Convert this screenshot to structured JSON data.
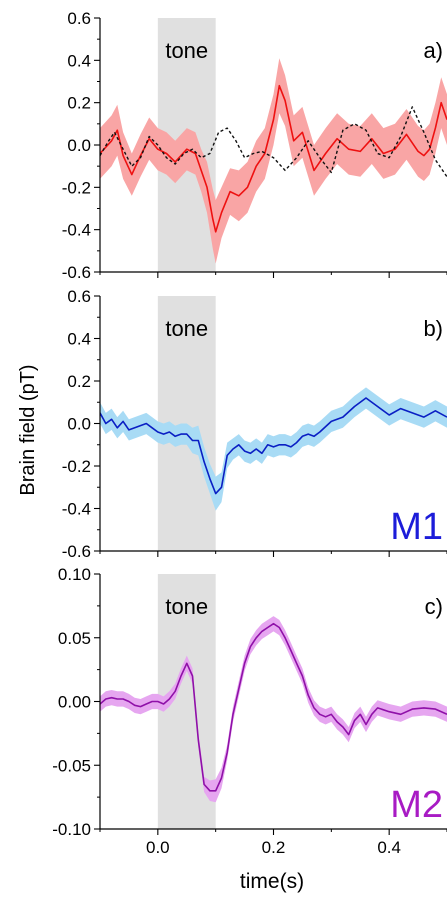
{
  "figure": {
    "ylabel": "Brain field (pT)",
    "xlabel": "time(s)",
    "xlim": [
      -0.1,
      0.5
    ],
    "x_ticks": [
      0.0,
      0.2,
      0.4
    ],
    "x_tick_labels": [
      "0.0",
      "0.2",
      "0.4"
    ]
  },
  "chart_data": [
    {
      "type": "line",
      "panel_label": "a)",
      "shade_label": "tone",
      "shade_range": [
        0.0,
        0.1
      ],
      "shade_color": "#e0e0e0",
      "ylim": [
        -0.6,
        0.6
      ],
      "y_ticks": [
        -0.6,
        -0.4,
        -0.2,
        0.0,
        0.2,
        0.4,
        0.6
      ],
      "y_tick_labels": [
        "-0.6",
        "-0.4",
        "-0.2",
        "0.0",
        "0.2",
        "0.4",
        "0.6"
      ],
      "series": [
        {
          "style": "solid",
          "color": "#ee1111",
          "band_color": "#f9a5a5",
          "x": [
            -0.1,
            -0.08,
            -0.07,
            -0.06,
            -0.045,
            -0.03,
            -0.015,
            0.0,
            0.015,
            0.03,
            0.05,
            0.065,
            0.075,
            0.085,
            0.095,
            0.1,
            0.11,
            0.125,
            0.14,
            0.155,
            0.17,
            0.185,
            0.2,
            0.21,
            0.22,
            0.235,
            0.25,
            0.27,
            0.29,
            0.31,
            0.33,
            0.35,
            0.37,
            0.39,
            0.41,
            0.43,
            0.45,
            0.46,
            0.47,
            0.48,
            0.49,
            0.5
          ],
          "y": [
            -0.04,
            0.02,
            0.07,
            -0.05,
            -0.14,
            -0.05,
            0.03,
            -0.02,
            -0.04,
            -0.08,
            -0.02,
            -0.04,
            -0.12,
            -0.2,
            -0.35,
            -0.41,
            -0.32,
            -0.22,
            -0.24,
            -0.2,
            -0.1,
            -0.04,
            0.12,
            0.28,
            0.21,
            0.02,
            0.06,
            -0.12,
            -0.04,
            0.03,
            -0.02,
            -0.03,
            0.03,
            -0.04,
            -0.02,
            0.05,
            -0.03,
            -0.05,
            -0.02,
            0.08,
            0.2,
            0.12
          ],
          "band_halfwidth": [
            0.12,
            0.12,
            0.12,
            0.11,
            0.1,
            0.1,
            0.1,
            0.1,
            0.1,
            0.1,
            0.1,
            0.1,
            0.1,
            0.12,
            0.14,
            0.15,
            0.12,
            0.11,
            0.12,
            0.12,
            0.12,
            0.12,
            0.12,
            0.13,
            0.12,
            0.12,
            0.12,
            0.12,
            0.12,
            0.12,
            0.12,
            0.12,
            0.12,
            0.12,
            0.12,
            0.12,
            0.12,
            0.12,
            0.12,
            0.12,
            0.12,
            0.12
          ]
        },
        {
          "style": "dashed",
          "color": "#111111",
          "x": [
            -0.1,
            -0.085,
            -0.075,
            -0.06,
            -0.045,
            -0.03,
            -0.015,
            0.0,
            0.015,
            0.03,
            0.045,
            0.06,
            0.075,
            0.09,
            0.105,
            0.12,
            0.135,
            0.15,
            0.165,
            0.18,
            0.2,
            0.22,
            0.24,
            0.26,
            0.28,
            0.3,
            0.32,
            0.34,
            0.36,
            0.38,
            0.4,
            0.42,
            0.44,
            0.46,
            0.48,
            0.5
          ],
          "y": [
            -0.05,
            0.02,
            0.06,
            -0.02,
            -0.1,
            -0.06,
            0.04,
            0.0,
            -0.06,
            -0.09,
            -0.04,
            -0.02,
            -0.06,
            -0.04,
            0.06,
            0.08,
            0.02,
            -0.06,
            -0.04,
            -0.03,
            -0.06,
            -0.12,
            -0.06,
            0.02,
            -0.06,
            -0.13,
            0.07,
            0.1,
            0.07,
            -0.04,
            -0.06,
            0.04,
            0.18,
            0.06,
            -0.07,
            -0.15
          ]
        }
      ]
    },
    {
      "type": "line",
      "panel_label": "b)",
      "shade_label": "tone",
      "shade_range": [
        0.0,
        0.1
      ],
      "shade_color": "#e0e0e0",
      "corner_label": "M1",
      "corner_label_color": "#1c1cd9",
      "ylim": [
        -0.6,
        0.6
      ],
      "y_ticks": [
        -0.6,
        -0.4,
        -0.2,
        0.0,
        0.2,
        0.4,
        0.6
      ],
      "y_tick_labels": [
        "-0.6",
        "-0.4",
        "-0.2",
        "0.0",
        "0.2",
        "0.4",
        "0.6"
      ],
      "series": [
        {
          "style": "solid",
          "color": "#0a1fc4",
          "band_color": "#a8dbf5",
          "x": [
            -0.1,
            -0.09,
            -0.08,
            -0.07,
            -0.06,
            -0.05,
            -0.04,
            -0.03,
            -0.02,
            -0.01,
            0.0,
            0.01,
            0.02,
            0.03,
            0.04,
            0.05,
            0.06,
            0.07,
            0.08,
            0.09,
            0.1,
            0.11,
            0.12,
            0.13,
            0.14,
            0.15,
            0.16,
            0.17,
            0.18,
            0.19,
            0.2,
            0.21,
            0.22,
            0.23,
            0.24,
            0.25,
            0.26,
            0.27,
            0.28,
            0.3,
            0.32,
            0.34,
            0.36,
            0.38,
            0.4,
            0.42,
            0.44,
            0.46,
            0.48,
            0.5
          ],
          "y": [
            0.05,
            0.0,
            0.02,
            -0.02,
            0.01,
            -0.03,
            -0.02,
            -0.01,
            0.0,
            -0.02,
            -0.04,
            -0.05,
            -0.04,
            -0.06,
            -0.05,
            -0.05,
            -0.08,
            -0.08,
            -0.18,
            -0.26,
            -0.33,
            -0.3,
            -0.15,
            -0.12,
            -0.1,
            -0.13,
            -0.14,
            -0.12,
            -0.14,
            -0.1,
            -0.11,
            -0.1,
            -0.1,
            -0.11,
            -0.09,
            -0.06,
            -0.05,
            -0.06,
            -0.04,
            0.01,
            0.03,
            0.08,
            0.12,
            0.08,
            0.04,
            0.07,
            0.05,
            0.03,
            0.06,
            0.03
          ],
          "band_halfwidth": [
            0.05,
            0.05,
            0.05,
            0.05,
            0.05,
            0.05,
            0.05,
            0.05,
            0.05,
            0.05,
            0.05,
            0.05,
            0.05,
            0.05,
            0.05,
            0.05,
            0.06,
            0.07,
            0.07,
            0.07,
            0.08,
            0.07,
            0.06,
            0.05,
            0.05,
            0.05,
            0.05,
            0.05,
            0.05,
            0.05,
            0.05,
            0.05,
            0.05,
            0.05,
            0.05,
            0.05,
            0.05,
            0.05,
            0.05,
            0.05,
            0.05,
            0.05,
            0.05,
            0.05,
            0.05,
            0.05,
            0.05,
            0.05,
            0.05,
            0.05
          ]
        }
      ]
    },
    {
      "type": "line",
      "panel_label": "c)",
      "shade_label": "tone",
      "shade_range": [
        0.0,
        0.1
      ],
      "shade_color": "#e0e0e0",
      "corner_label": "M2",
      "corner_label_color": "#a81bc4",
      "ylim": [
        -0.1,
        0.1
      ],
      "y_ticks": [
        -0.1,
        -0.05,
        0.0,
        0.05,
        0.1
      ],
      "y_tick_labels": [
        "-0.10",
        "-0.05",
        "0.00",
        "0.05",
        "0.10"
      ],
      "series": [
        {
          "style": "solid",
          "color": "#8f10a8",
          "band_color": "#e6a6f0",
          "x": [
            -0.1,
            -0.09,
            -0.08,
            -0.07,
            -0.06,
            -0.05,
            -0.04,
            -0.03,
            -0.02,
            -0.01,
            0.0,
            0.01,
            0.02,
            0.03,
            0.04,
            0.05,
            0.06,
            0.07,
            0.08,
            0.09,
            0.1,
            0.11,
            0.12,
            0.13,
            0.14,
            0.15,
            0.16,
            0.17,
            0.18,
            0.19,
            0.2,
            0.21,
            0.22,
            0.23,
            0.24,
            0.25,
            0.26,
            0.27,
            0.28,
            0.29,
            0.3,
            0.31,
            0.32,
            0.33,
            0.34,
            0.35,
            0.36,
            0.37,
            0.38,
            0.4,
            0.42,
            0.44,
            0.46,
            0.48,
            0.5
          ],
          "y": [
            -0.002,
            0.002,
            0.003,
            0.002,
            0.002,
            0.0,
            -0.003,
            -0.004,
            -0.002,
            0.0,
            0.0,
            -0.002,
            0.002,
            0.008,
            0.02,
            0.03,
            0.02,
            -0.03,
            -0.065,
            -0.07,
            -0.07,
            -0.06,
            -0.04,
            -0.01,
            0.01,
            0.03,
            0.043,
            0.05,
            0.055,
            0.058,
            0.061,
            0.058,
            0.05,
            0.04,
            0.03,
            0.02,
            0.005,
            -0.005,
            -0.01,
            -0.012,
            -0.01,
            -0.016,
            -0.02,
            -0.026,
            -0.015,
            -0.01,
            -0.018,
            -0.01,
            -0.005,
            -0.008,
            -0.01,
            -0.006,
            -0.005,
            -0.006,
            -0.01
          ],
          "band_halfwidth": [
            0.006,
            0.006,
            0.006,
            0.006,
            0.006,
            0.006,
            0.006,
            0.006,
            0.006,
            0.006,
            0.006,
            0.006,
            0.006,
            0.006,
            0.006,
            0.006,
            0.006,
            0.006,
            0.006,
            0.008,
            0.009,
            0.008,
            0.006,
            0.006,
            0.006,
            0.006,
            0.006,
            0.006,
            0.006,
            0.006,
            0.006,
            0.006,
            0.006,
            0.006,
            0.006,
            0.006,
            0.006,
            0.006,
            0.006,
            0.006,
            0.006,
            0.006,
            0.006,
            0.006,
            0.006,
            0.006,
            0.006,
            0.006,
            0.006,
            0.006,
            0.006,
            0.006,
            0.006,
            0.006,
            0.006
          ]
        }
      ]
    }
  ]
}
